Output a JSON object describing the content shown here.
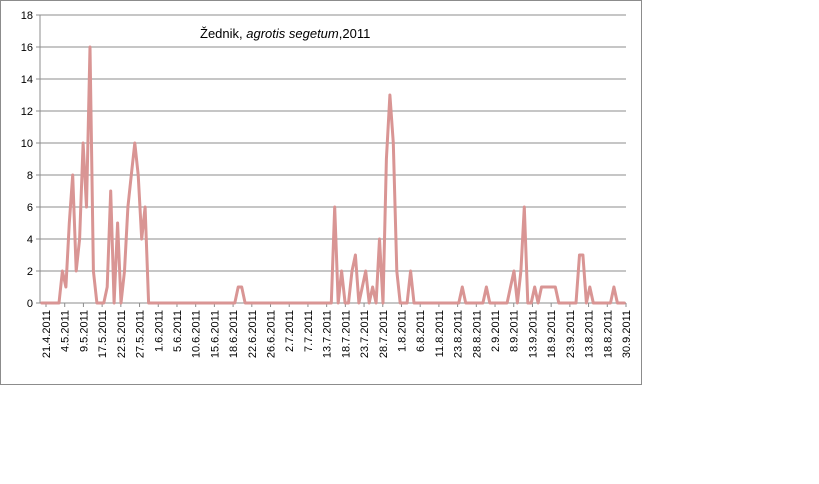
{
  "chart_data": {
    "type": "line",
    "title_parts": [
      {
        "text": "Žednik, ",
        "italic": false
      },
      {
        "text": "agrotis segetum",
        "italic": true
      },
      {
        "text": ",2011",
        "italic": false
      }
    ],
    "xlabel": "",
    "ylabel": "",
    "ylim": [
      0,
      18
    ],
    "yticks": [
      0,
      2,
      4,
      6,
      8,
      10,
      12,
      14,
      16,
      18
    ],
    "grid": true,
    "legend": "none",
    "line_color": "#d99594",
    "x_tick_labels": [
      "21.4.2011",
      "4.5.2011",
      "9.5.2011",
      "17.5.2011",
      "22.5.2011",
      "27.5.2011",
      "1.6.2011",
      "5.6.2011",
      "10.6.2011",
      "15.6.2011",
      "18.6.2011",
      "22.6.2011",
      "26.6.2011",
      "2.7.2011",
      "7.7.2011",
      "13.7.2011",
      "18.7.2011",
      "23.7.2011",
      "28.7.2011",
      "1.8.2011",
      "6.8.2011",
      "11.8.2011",
      "23.8.2011",
      "28.8.2011",
      "2.9.2011",
      "8.9.2011",
      "13.9.2011",
      "18.9.2011",
      "23.9.2011",
      "13.8.2011",
      "18.8.2011",
      "30.9.2011"
    ],
    "values": [
      0,
      0,
      0,
      0,
      0,
      0,
      2,
      1,
      5,
      8,
      2,
      4,
      10,
      6,
      16,
      2,
      0,
      0,
      0,
      1,
      7,
      0,
      5,
      0,
      2,
      6,
      8,
      10,
      8,
      4,
      6,
      0,
      0,
      0,
      0,
      0,
      0,
      0,
      0,
      0,
      0,
      0,
      0,
      0,
      0,
      0,
      0,
      0,
      0,
      0,
      0,
      0,
      0,
      0,
      0,
      0,
      0,
      1,
      1,
      0,
      0,
      0,
      0,
      0,
      0,
      0,
      0,
      0,
      0,
      0,
      0,
      0,
      0,
      0,
      0,
      0,
      0,
      0,
      0,
      0,
      0,
      0,
      0,
      0,
      0,
      6,
      0,
      2,
      0,
      0,
      2,
      3,
      0,
      1,
      2,
      0,
      1,
      0,
      4,
      0,
      9,
      13,
      10,
      2,
      0,
      0,
      0,
      2,
      0,
      0,
      0,
      0,
      0,
      0,
      0,
      0,
      0,
      0,
      0,
      0,
      0,
      0,
      1,
      0,
      0,
      0,
      0,
      0,
      0,
      1,
      0,
      0,
      0,
      0,
      0,
      0,
      1,
      2,
      0,
      2,
      6,
      0,
      0,
      1,
      0,
      1,
      1,
      1,
      1,
      1,
      0,
      0,
      0,
      0,
      0,
      0,
      3,
      3,
      0,
      1,
      0,
      0,
      0,
      0,
      0,
      0,
      1,
      0,
      0,
      0
    ]
  }
}
